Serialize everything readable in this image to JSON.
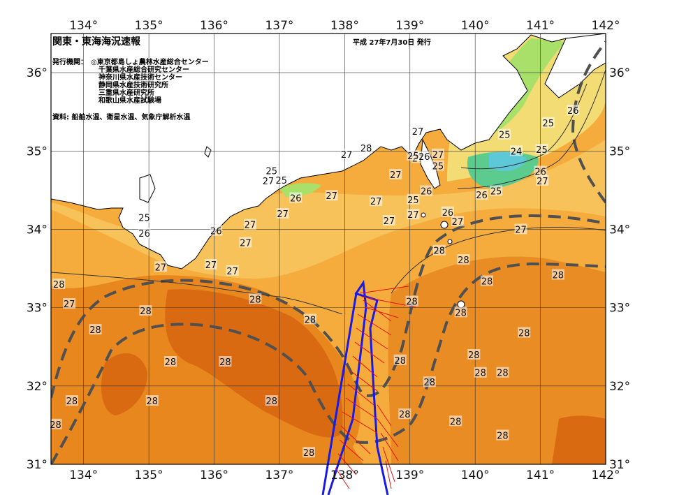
{
  "header": {
    "title": "関東・東海海況速報",
    "date": "平成 27年7月30日 発行",
    "publisher_label": "発行機関：",
    "publishers": [
      "◎東京都島しょ農林水産総合センター",
      "千葉県水産総合研究センター",
      "神奈川県水産技術センター",
      "静岡県水産技術研究所",
      "三重県水産研究所",
      "和歌山県水産試験場"
    ],
    "source": "資料: 船舶水温、衛星水温、気象庁解析水温"
  },
  "axes": {
    "lon_ticks": [
      "134°",
      "135°",
      "136°",
      "137°",
      "138°",
      "139°",
      "140°",
      "141°",
      "142°"
    ],
    "lat_ticks": [
      "36°",
      "35°",
      "34°",
      "33°",
      "32°",
      "31°"
    ]
  },
  "isotherm_labels": [
    {
      "text": "25",
      "lon": 134.93,
      "lat": 34.15
    },
    {
      "text": "26",
      "lon": 134.93,
      "lat": 33.95
    },
    {
      "text": "27",
      "lon": 135.18,
      "lat": 33.52
    },
    {
      "text": "28",
      "lon": 133.62,
      "lat": 33.3
    },
    {
      "text": "27",
      "lon": 133.78,
      "lat": 33.05
    },
    {
      "text": "28",
      "lon": 134.95,
      "lat": 32.96
    },
    {
      "text": "28",
      "lon": 134.18,
      "lat": 32.72
    },
    {
      "text": "28",
      "lon": 135.33,
      "lat": 32.31
    },
    {
      "text": "28",
      "lon": 136.17,
      "lat": 32.31
    },
    {
      "text": "28",
      "lon": 133.82,
      "lat": 31.81
    },
    {
      "text": "28",
      "lon": 135.05,
      "lat": 31.81
    },
    {
      "text": "28",
      "lon": 133.57,
      "lat": 31.51
    },
    {
      "text": "28",
      "lon": 137.45,
      "lat": 31.15
    },
    {
      "text": "28",
      "lon": 136.88,
      "lat": 31.81
    },
    {
      "text": "26",
      "lon": 136.03,
      "lat": 33.98
    },
    {
      "text": "27",
      "lon": 136.55,
      "lat": 34.06
    },
    {
      "text": "27",
      "lon": 136.48,
      "lat": 33.83
    },
    {
      "text": "27",
      "lon": 135.95,
      "lat": 33.55
    },
    {
      "text": "27",
      "lon": 136.28,
      "lat": 33.47
    },
    {
      "text": "28",
      "lon": 136.63,
      "lat": 33.11
    },
    {
      "text": "28",
      "lon": 137.47,
      "lat": 32.85
    },
    {
      "text": "27",
      "lon": 137.05,
      "lat": 34.2
    },
    {
      "text": "26",
      "lon": 137.25,
      "lat": 34.4
    },
    {
      "text": "27",
      "lon": 137.8,
      "lat": 34.43
    },
    {
      "text": "25",
      "lon": 136.88,
      "lat": 34.75
    },
    {
      "text": "27",
      "lon": 136.83,
      "lat": 34.62
    },
    {
      "text": "25",
      "lon": 137.03,
      "lat": 34.63
    },
    {
      "text": "27",
      "lon": 138.03,
      "lat": 34.96
    },
    {
      "text": "28",
      "lon": 138.33,
      "lat": 35.04
    },
    {
      "text": "27",
      "lon": 138.48,
      "lat": 34.36
    },
    {
      "text": "27",
      "lon": 138.78,
      "lat": 34.7
    },
    {
      "text": "27",
      "lon": 138.68,
      "lat": 34.11
    },
    {
      "text": "27",
      "lon": 139.12,
      "lat": 34.91
    },
    {
      "text": "27",
      "lon": 139.05,
      "lat": 34.19
    },
    {
      "text": "25",
      "lon": 139.05,
      "lat": 34.38
    },
    {
      "text": "26",
      "lon": 139.25,
      "lat": 34.49
    },
    {
      "text": "25",
      "lon": 139.43,
      "lat": 34.81
    },
    {
      "text": "26",
      "lon": 139.22,
      "lat": 34.93
    },
    {
      "text": "27",
      "lon": 139.43,
      "lat": 34.96
    },
    {
      "text": "25",
      "lon": 139.05,
      "lat": 34.94
    },
    {
      "text": "27",
      "lon": 139.12,
      "lat": 35.25
    },
    {
      "text": "26",
      "lon": 139.58,
      "lat": 34.22
    },
    {
      "text": "27",
      "lon": 139.73,
      "lat": 34.1
    },
    {
      "text": "28",
      "lon": 139.45,
      "lat": 33.73
    },
    {
      "text": "28",
      "lon": 139.82,
      "lat": 33.61
    },
    {
      "text": "28",
      "lon": 140.18,
      "lat": 33.34
    },
    {
      "text": "28",
      "lon": 139.03,
      "lat": 33.08
    },
    {
      "text": "28",
      "lon": 139.78,
      "lat": 32.94
    },
    {
      "text": "28",
      "lon": 140.75,
      "lat": 32.68
    },
    {
      "text": "28",
      "lon": 139.98,
      "lat": 32.4
    },
    {
      "text": "28",
      "lon": 138.85,
      "lat": 32.33
    },
    {
      "text": "28",
      "lon": 139.3,
      "lat": 32.05
    },
    {
      "text": "28",
      "lon": 140.08,
      "lat": 32.17
    },
    {
      "text": "28",
      "lon": 140.42,
      "lat": 32.17
    },
    {
      "text": "28",
      "lon": 138.92,
      "lat": 31.64
    },
    {
      "text": "28",
      "lon": 139.7,
      "lat": 31.55
    },
    {
      "text": "28",
      "lon": 140.42,
      "lat": 31.37
    },
    {
      "text": "28",
      "lon": 141.27,
      "lat": 33.42
    },
    {
      "text": "27",
      "lon": 140.7,
      "lat": 34.0
    },
    {
      "text": "26",
      "lon": 140.1,
      "lat": 34.44
    },
    {
      "text": "25",
      "lon": 140.32,
      "lat": 34.49
    },
    {
      "text": "27",
      "lon": 141.03,
      "lat": 34.62
    },
    {
      "text": "26",
      "lon": 141.0,
      "lat": 34.74
    },
    {
      "text": "25",
      "lon": 141.02,
      "lat": 35.02
    },
    {
      "text": "24",
      "lon": 140.63,
      "lat": 35.0
    },
    {
      "text": "25",
      "lon": 140.45,
      "lat": 35.21
    },
    {
      "text": "25",
      "lon": 141.12,
      "lat": 35.36
    },
    {
      "text": "26",
      "lon": 141.5,
      "lat": 35.52
    }
  ],
  "legend": {}
}
